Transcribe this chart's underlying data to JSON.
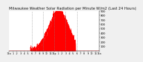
{
  "title": "Milwaukee Weather Solar Radiation per Minute W/m2 (Last 24 Hours)",
  "title_fontsize": 3.8,
  "background_color": "#f0f0f0",
  "plot_bg_color": "#ffffff",
  "bar_color": "#ff0000",
  "grid_color": "#888888",
  "ylim": [
    0,
    900
  ],
  "yticks": [
    100,
    200,
    300,
    400,
    500,
    600,
    700,
    800,
    900
  ],
  "ytick_fontsize": 2.8,
  "xtick_fontsize": 2.5,
  "num_points": 1440,
  "peak_hour": 13.2,
  "peak_value": 870,
  "sigma_hours": 2.6,
  "noise_scale": 40,
  "vline_positions": [
    6,
    9,
    12,
    15,
    18
  ],
  "x_tick_hours": [
    0,
    1,
    2,
    3,
    4,
    5,
    6,
    7,
    8,
    9,
    10,
    11,
    12,
    13,
    14,
    15,
    16,
    17,
    18,
    19,
    20,
    21,
    22,
    23,
    24
  ],
  "x_tick_labels": [
    "12a",
    "1",
    "2",
    "3",
    "4",
    "5",
    "6",
    "7",
    "8",
    "9",
    "10",
    "11",
    "12p",
    "1",
    "2",
    "3",
    "4",
    "5",
    "6",
    "7",
    "8",
    "9",
    "10",
    "11",
    "12a"
  ]
}
